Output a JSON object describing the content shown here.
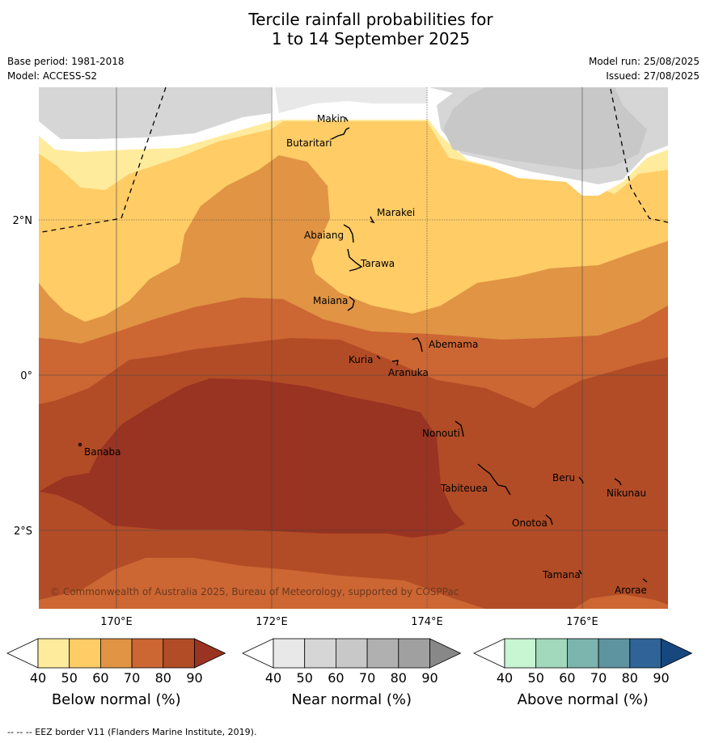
{
  "title_line1": "Tercile rainfall probabilities for",
  "title_line2": "1 to 14 September 2025",
  "base_period": "Base period: 1981-2018",
  "model": "Model: ACCESS-S2",
  "model_run": "Model run: 25/08/2025",
  "issued": "Issued: 27/08/2025",
  "map": {
    "lat_labels": [
      "2°N",
      "0°",
      "2°S"
    ],
    "lon_labels": [
      "170°E",
      "172°E",
      "174°E",
      "176°E"
    ],
    "places": [
      "Makin",
      "Butaritari",
      "Marakei",
      "Abaiang",
      "Tarawa",
      "Maiana",
      "Abemama",
      "Kuria",
      "Aranuka",
      "Nonouti",
      "Banaba",
      "Tabiteuea",
      "Beru",
      "Nikunau",
      "Onotoa",
      "Tamana",
      "Arorae"
    ],
    "copyright": "© Commonwealth of Australia 2025, Bureau of Meteorology, supported by COSPPac"
  },
  "legends": [
    {
      "label": "Below normal (%)",
      "ticks": [
        "40",
        "50",
        "60",
        "70",
        "80",
        "90"
      ],
      "colors": [
        "#ffffff",
        "#ffeb9c",
        "#ffcc66",
        "#e09444",
        "#cc6633",
        "#b24c26",
        "#993322"
      ]
    },
    {
      "label": "Near normal (%)",
      "ticks": [
        "40",
        "50",
        "60",
        "70",
        "80",
        "90"
      ],
      "colors": [
        "#ffffff",
        "#e8e8e8",
        "#d6d6d6",
        "#c8c8c8",
        "#b0b0b0",
        "#a0a0a0",
        "#888888"
      ]
    },
    {
      "label": "Above normal (%)",
      "ticks": [
        "40",
        "50",
        "60",
        "70",
        "80",
        "90"
      ],
      "colors": [
        "#ffffff",
        "#c8f5d2",
        "#a2d8bc",
        "#7bb5ae",
        "#5e949f",
        "#306498",
        "#16477f"
      ]
    }
  ],
  "footer": "-- -- -- EEZ border V11 (Flanders Marine Institute, 2019)."
}
